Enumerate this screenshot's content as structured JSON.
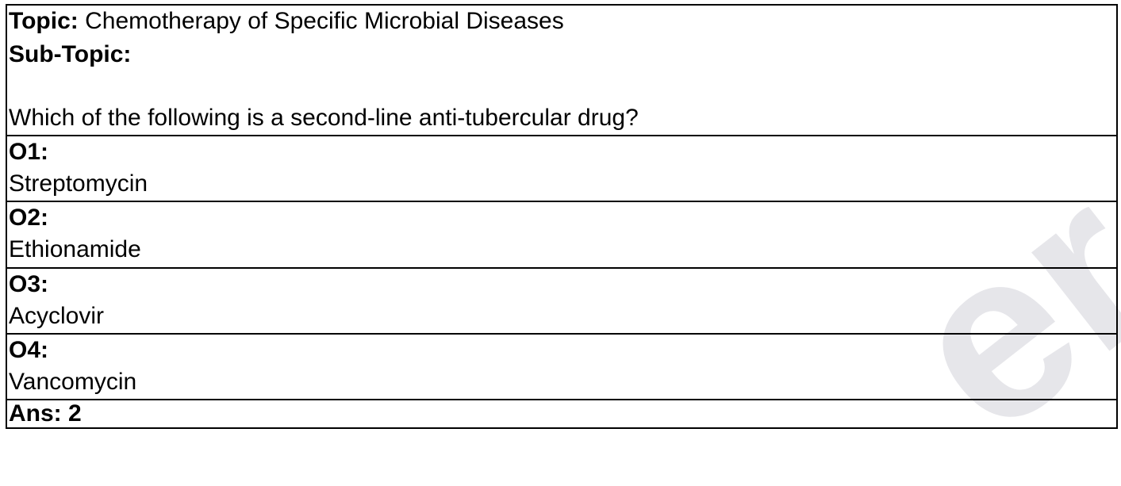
{
  "question": {
    "topic_label": "Topic:",
    "topic_value": "Chemotherapy of Specific Microbial Diseases",
    "subtopic_label": "Sub-Topic:",
    "subtopic_value": "",
    "text": "Which of the following is a second-line anti-tubercular drug?"
  },
  "options": [
    {
      "label": "O1:",
      "text": "Streptomycin"
    },
    {
      "label": "O2:",
      "text": "Ethionamide"
    },
    {
      "label": "O3:",
      "text": "Acyclovir"
    },
    {
      "label": "O4:",
      "text": "Vancomycin"
    }
  ],
  "answer": {
    "label": "Ans: 2"
  },
  "watermark": {
    "text": "er",
    "color": "#e6e6ea"
  }
}
